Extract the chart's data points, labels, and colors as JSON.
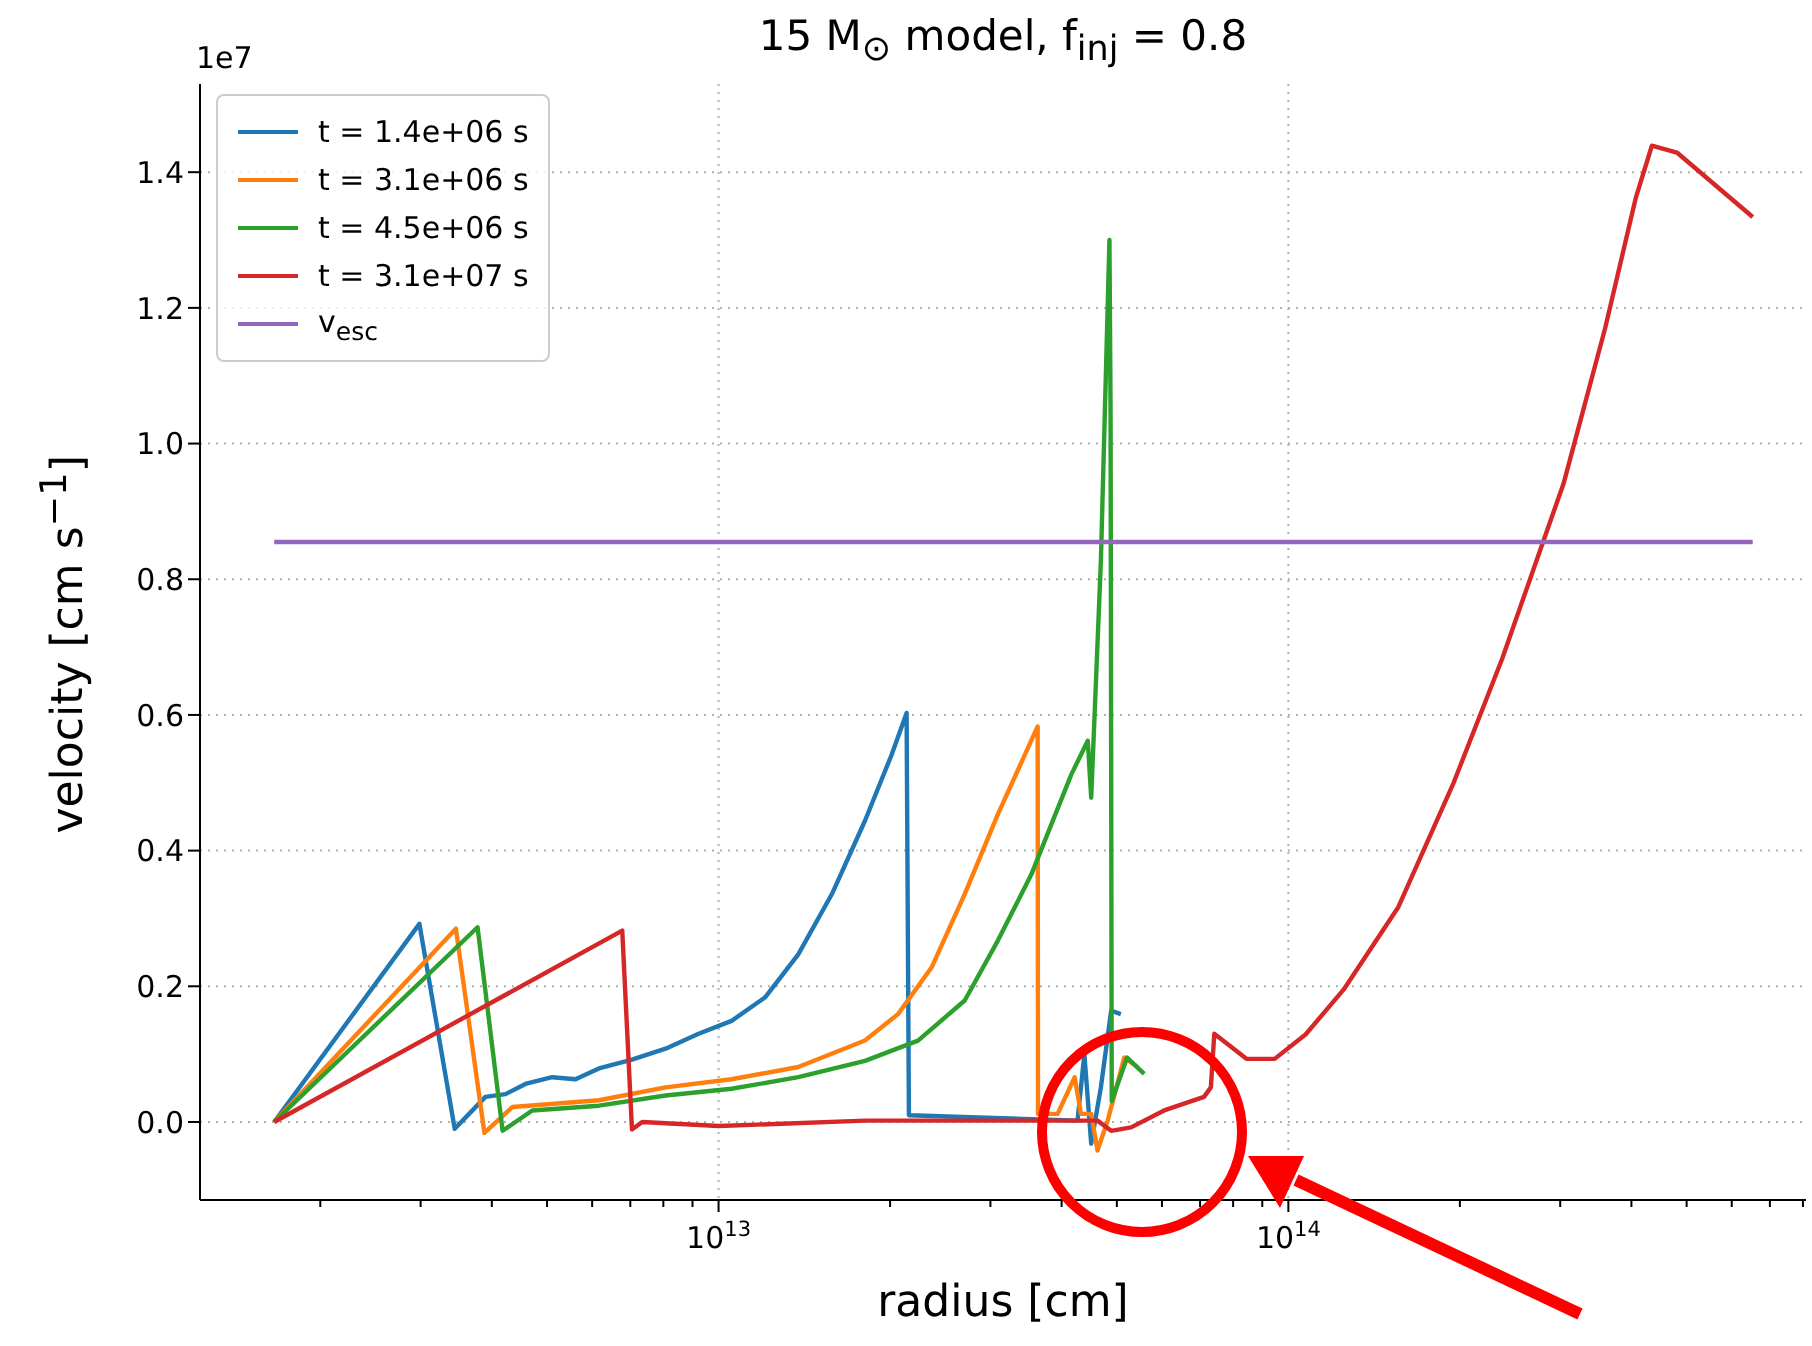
{
  "chart_data": {
    "type": "line",
    "title": "15 M$_{⊙}$ model, f$_{inj}$ = 0.8",
    "xlabel": "radius [cm]",
    "ylabel": "velocity [cm s$^{−1}$]",
    "annotations": [
      "1e7"
    ],
    "log": "x",
    "grid": true,
    "legend": "top left",
    "line_style": "solid",
    "marker": "none",
    "xlim": [
      1230000000000.0,
      810000000000000.0
    ],
    "ylim": [
      -0.115,
      1.53
    ],
    "xticks": [
      {
        "value": 2000000000000.0,
        "label": null
      },
      {
        "value": 3000000000000.0,
        "label": null
      },
      {
        "value": 4000000000000.0,
        "label": null
      },
      {
        "value": 5000000000000.0,
        "label": null
      },
      {
        "value": 6000000000000.0,
        "label": null
      },
      {
        "value": 7000000000000.0,
        "label": null
      },
      {
        "value": 8000000000000.0,
        "label": null
      },
      {
        "value": 9000000000000.0,
        "label": null
      },
      {
        "value": 10000000000000.0,
        "label": "10$^{13}$"
      },
      {
        "value": 20000000000000.0,
        "label": null
      },
      {
        "value": 30000000000000.0,
        "label": null
      },
      {
        "value": 40000000000000.0,
        "label": null
      },
      {
        "value": 50000000000000.0,
        "label": null
      },
      {
        "value": 60000000000000.0,
        "label": null
      },
      {
        "value": 70000000000000.0,
        "label": null
      },
      {
        "value": 80000000000000.0,
        "label": null
      },
      {
        "value": 90000000000000.0,
        "label": null
      },
      {
        "value": 100000000000000.0,
        "label": "10$^{14}$"
      },
      {
        "value": 200000000000000.0,
        "label": null
      },
      {
        "value": 300000000000000.0,
        "label": null
      },
      {
        "value": 400000000000000.0,
        "label": null
      },
      {
        "value": 500000000000000.0,
        "label": null
      },
      {
        "value": 600000000000000.0,
        "label": null
      },
      {
        "value": 700000000000000.0,
        "label": null
      },
      {
        "value": 800000000000000.0,
        "label": null
      }
    ],
    "yticks": [
      {
        "value": 0,
        "label": "0.0"
      },
      {
        "value": 0.2,
        "label": "0.2"
      },
      {
        "value": 0.4,
        "label": "0.4"
      },
      {
        "value": 0.6,
        "label": "0.6"
      },
      {
        "value": 0.8,
        "label": "0.8"
      },
      {
        "value": 1,
        "label": "1.0"
      },
      {
        "value": 1.2,
        "label": "1.2"
      },
      {
        "value": 1.4,
        "label": "1.4"
      }
    ],
    "series": [
      {
        "name": "t = 1.4e+06 s",
        "color": "#1f77b4",
        "x": [
          1660000000000.0,
          2985000000000.0,
          3443000000000.0,
          3899000000000.0,
          4227000000000.0,
          4581000000000.0,
          5105000000000.0,
          5610000000000.0,
          6166000000000.0,
          7047000000000.0,
          8072000000000.0,
          9226000000000.0,
          10540000000000.0,
          12080000000000.0,
          13800000000000.0,
          15810000000000.0,
          18070000000000.0,
          20140000000000.0,
          21380000000000.0,
          21580000000000.0,
          42660000000000.0,
          43850000000000.0,
          45080000000000.0,
          46880000000000.0,
          48870000000000.0,
          50820000000000.0
        ],
        "values": [
          0,
          0.292,
          -0.01,
          0.037,
          0.041,
          0.056,
          0.066,
          0.063,
          0.079,
          0.092,
          0.108,
          0.13,
          0.149,
          0.184,
          0.247,
          0.336,
          0.444,
          0.542,
          0.603,
          0.01,
          0.002,
          0.1,
          -0.032,
          0.051,
          0.164,
          0.159
        ]
      },
      {
        "name": "t = 3.1e+06 s",
        "color": "#ff7f0e",
        "x": [
          1660000000000.0,
          3459000000000.0,
          3882000000000.0,
          4345000000000.0,
          6166000000000.0,
          8072000000000.0,
          10540000000000.0,
          13800000000000.0,
          18070000000000.0,
          20650000000000.0,
          23660000000000.0,
          27040000000000.0,
          30900000000000.0,
          36310000000000.0,
          36360000000000.0,
          39360000000000.0,
          42170000000000.0,
          43250000000000.0,
          45080000000000.0,
          46240000000000.0,
          48190000000000.0,
          51520000000000.0,
          54330000000000.0
        ],
        "values": [
          0,
          0.285,
          -0.016,
          0.022,
          0.032,
          0.051,
          0.063,
          0.081,
          0.12,
          0.159,
          0.228,
          0.336,
          0.453,
          0.583,
          0.012,
          0.012,
          0.066,
          0.012,
          0.012,
          -0.042,
          0.002,
          0.095,
          0.081
        ]
      },
      {
        "name": "t = 4.5e+06 s",
        "color": "#2ca02c",
        "x": [
          1660000000000.0,
          3776000000000.0,
          4178000000000.0,
          4710000000000.0,
          6166000000000.0,
          8072000000000.0,
          10540000000000.0,
          13800000000000.0,
          18070000000000.0,
          22390000000000.0,
          27040000000000.0,
          30900000000000.0,
          35400000000000.0,
          41590000000000.0,
          44460000000000.0,
          45080000000000.0,
          46880000000000.0,
          48530000000000.0,
          48750000000000.0,
          48980000000000.0,
          52120000000000.0,
          55850000000000.0
        ],
        "values": [
          0,
          0.287,
          -0.013,
          0.017,
          0.024,
          0.039,
          0.049,
          0.066,
          0.09,
          0.12,
          0.179,
          0.267,
          0.365,
          0.512,
          0.562,
          0.478,
          0.827,
          1.3,
          1.052,
          0.031,
          0.095,
          0.071
        ]
      },
      {
        "name": "t = 3.1e+07 s",
        "color": "#d62728",
        "x": [
          1660000000000.0,
          6776000000000.0,
          7047000000000.0,
          7345000000000.0,
          10000000000000.0,
          18070000000000.0,
          20650000000000.0,
          46240000000000.0,
          48870000000000.0,
          52970000000000.0,
          60530000000000.0,
          71120000000000.0,
          73110000000000.0,
          74130000000000.0,
          84530000000000.0,
          94620000000000.0,
          107200000000000.0,
          125000000000000.0,
          156000000000000.0,
          195000000000000.0,
          237100000000000.0,
          279900000000000.0,
          304100000000000.0,
          359700000000000.0,
          407400000000000.0,
          434500000000000.0,
          480800000000000.0,
          653100000000000.0
        ],
        "values": [
          0,
          0.282,
          -0.011,
          0,
          -0.006,
          0.002,
          0.002,
          0.002,
          -0.013,
          -0.008,
          0.017,
          0.037,
          0.051,
          0.13,
          0.093,
          0.093,
          0.129,
          0.195,
          0.317,
          0.5,
          0.682,
          0.855,
          0.941,
          1.17,
          1.363,
          1.439,
          1.429,
          1.334
        ]
      },
      {
        "name": "v$_{esc}$",
        "color": "#9467bd",
        "x": [
          1660000000000.0,
          653100000000000.0
        ],
        "values": [
          0.855,
          0.855
        ]
      }
    ]
  }
}
